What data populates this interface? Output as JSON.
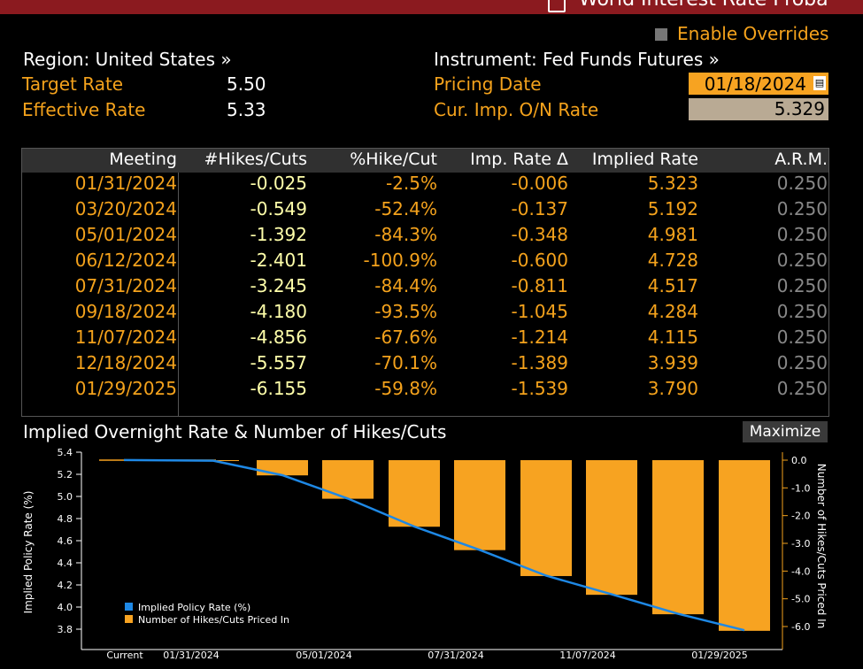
{
  "window": {
    "title": "World Interest Rate Proba"
  },
  "overrides": {
    "label": "Enable Overrides"
  },
  "header": {
    "region": "Region: United States »",
    "instrument": "Instrument: Fed Funds Futures »",
    "target_rate_label": "Target Rate",
    "target_rate_value": "5.50",
    "effective_rate_label": "Effective Rate",
    "effective_rate_value": "5.33",
    "pricing_date_label": "Pricing Date",
    "pricing_date_value": "01/18/2024",
    "cur_imp_label": "Cur. Imp. O/N Rate",
    "cur_imp_value": "5.329"
  },
  "table": {
    "columns": [
      "Meeting",
      "#Hikes/Cuts",
      "%Hike/Cut",
      "Imp. Rate Δ",
      "Implied Rate",
      "A.R.M."
    ],
    "rows": [
      [
        "01/31/2024",
        "-0.025",
        "-2.5%",
        "-0.006",
        "5.323",
        "0.250"
      ],
      [
        "03/20/2024",
        "-0.549",
        "-52.4%",
        "-0.137",
        "5.192",
        "0.250"
      ],
      [
        "05/01/2024",
        "-1.392",
        "-84.3%",
        "-0.348",
        "4.981",
        "0.250"
      ],
      [
        "06/12/2024",
        "-2.401",
        "-100.9%",
        "-0.600",
        "4.728",
        "0.250"
      ],
      [
        "07/31/2024",
        "-3.245",
        "-84.4%",
        "-0.811",
        "4.517",
        "0.250"
      ],
      [
        "09/18/2024",
        "-4.180",
        "-93.5%",
        "-1.045",
        "4.284",
        "0.250"
      ],
      [
        "11/07/2024",
        "-4.856",
        "-67.6%",
        "-1.214",
        "4.115",
        "0.250"
      ],
      [
        "12/18/2024",
        "-5.557",
        "-70.1%",
        "-1.389",
        "3.939",
        "0.250"
      ],
      [
        "01/29/2025",
        "-6.155",
        "-59.8%",
        "-1.539",
        "3.790",
        "0.250"
      ]
    ]
  },
  "chart_section": {
    "title": "Implied Overnight Rate & Number of Hikes/Cuts",
    "maximize_label": "Maximize"
  },
  "chart_data": {
    "type": "bar",
    "categories": [
      "Current",
      "01/31/2024",
      "03/20/2024",
      "05/01/2024",
      "06/12/2024",
      "07/31/2024",
      "09/18/2024",
      "11/07/2024",
      "12/18/2024",
      "01/29/2025"
    ],
    "x_tick_labels": [
      "Current",
      "01/31/2024",
      "05/01/2024",
      "07/31/2024",
      "11/07/2024",
      "01/29/2025"
    ],
    "series": [
      {
        "name": "Implied Policy Rate (%)",
        "type": "line",
        "axis": "left",
        "color": "#1e88e5",
        "values": [
          5.329,
          5.323,
          5.192,
          4.981,
          4.728,
          4.517,
          4.284,
          4.115,
          3.939,
          3.79
        ]
      },
      {
        "name": "Number of Hikes/Cuts Priced In",
        "type": "bar",
        "axis": "right",
        "color": "#f7a321",
        "values": [
          0,
          -0.025,
          -0.549,
          -1.392,
          -2.401,
          -3.245,
          -4.18,
          -4.856,
          -5.557,
          -6.155
        ]
      }
    ],
    "ylabel": "Implied Policy Rate (%)",
    "y2label": "Number of Hikes/Cuts Priced In",
    "ylim": [
      3.7,
      5.45
    ],
    "yticks": [
      "5.4",
      "5.2",
      "5.0",
      "4.8",
      "4.6",
      "4.4",
      "4.2",
      "4.0",
      "3.8"
    ],
    "y2ticks": [
      "0.0",
      "-1.0",
      "-2.0",
      "-3.0",
      "-4.0",
      "-5.0",
      "-6.0"
    ],
    "legend_position": "bottom-left",
    "grid": false
  },
  "colors": {
    "accent": "#f4a21c",
    "titlebar": "#8b1a1f",
    "line": "#1e88e5",
    "bar": "#f7a321"
  }
}
